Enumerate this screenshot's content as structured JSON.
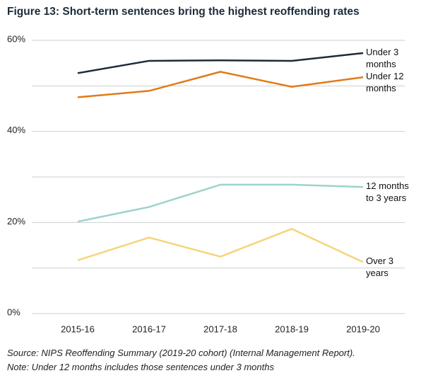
{
  "chart_data": {
    "type": "line",
    "title": "Figure 13: Short-term sentences bring the highest reoffending rates",
    "categories": [
      "2015-16",
      "2016-17",
      "2017-18",
      "2018-19",
      "2019-20"
    ],
    "series": [
      {
        "name": "Under 3 months",
        "color": "#1c2b3a",
        "values": [
          52.8,
          55.5,
          55.6,
          55.5,
          57.2
        ]
      },
      {
        "name": "Under 12 months",
        "color": "#e07b1a",
        "values": [
          47.5,
          48.9,
          53.1,
          49.8,
          51.9
        ]
      },
      {
        "name": "12 months to 3 years",
        "color": "#9dd3cc",
        "values": [
          20.2,
          23.4,
          28.3,
          28.3,
          27.8
        ]
      },
      {
        "name": "Over 3 years",
        "color": "#f5d57a",
        "values": [
          11.7,
          16.7,
          12.5,
          18.6,
          11.3
        ]
      }
    ],
    "ylim": [
      0,
      60
    ],
    "yticks": [
      {
        "value": 0,
        "label": "0%"
      },
      {
        "value": 20,
        "label": "20%"
      },
      {
        "value": 40,
        "label": "40%"
      },
      {
        "value": 60,
        "label": "60%"
      }
    ],
    "minor_yticks": [
      10,
      30,
      50
    ],
    "grid": true,
    "source": "Source: NIPS Reoffending Summary (2019-20 cohort) (Internal Management Report).",
    "note": "Note: Under 12 months includes those sentences under 3 months"
  }
}
